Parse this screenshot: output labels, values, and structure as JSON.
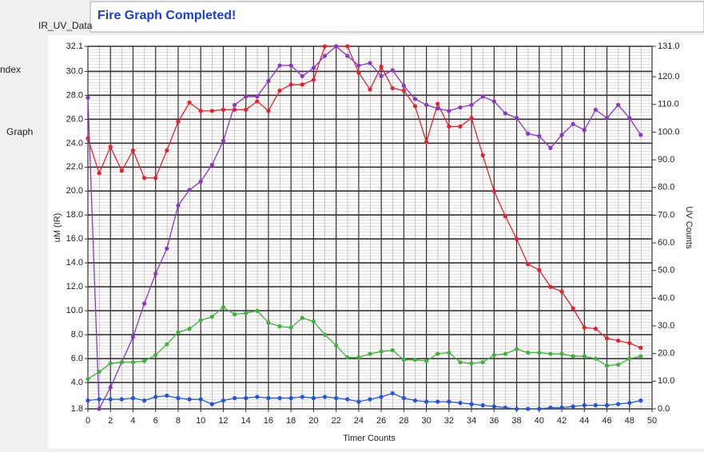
{
  "ui": {
    "left_label_1": "ndex",
    "left_label_2": "Graph",
    "tab": "IR_UV_Data",
    "status": "Fire Graph Completed!"
  },
  "chart_data": {
    "type": "line",
    "xlabel": "Timer Counts",
    "ylabel": "uM (IR)",
    "y2label": "UV Counts",
    "x": [
      0,
      1,
      2,
      3,
      4,
      5,
      6,
      7,
      8,
      9,
      10,
      11,
      12,
      13,
      14,
      15,
      16,
      17,
      18,
      19,
      20,
      21,
      22,
      23,
      24,
      25,
      26,
      27,
      28,
      29,
      30,
      31,
      32,
      33,
      34,
      35,
      36,
      37,
      38,
      39,
      40,
      41,
      42,
      43,
      44,
      45,
      46,
      47,
      48,
      49
    ],
    "xlim": [
      0,
      50
    ],
    "xticks": [
      0,
      2,
      4,
      6,
      8,
      10,
      12,
      14,
      16,
      18,
      20,
      22,
      24,
      26,
      28,
      30,
      32,
      34,
      36,
      38,
      40,
      42,
      44,
      46,
      48,
      50
    ],
    "ylim": [
      1.8,
      32.1
    ],
    "yticks": [
      1.8,
      {
        "value": 4,
        "label": "4.0"
      },
      {
        "value": 6,
        "label": "6.0"
      },
      {
        "value": 8,
        "label": "8.0"
      },
      {
        "value": 10,
        "label": "10.0"
      },
      {
        "value": 12,
        "label": "12.0"
      },
      {
        "value": 14,
        "label": "14.0"
      },
      {
        "value": 16,
        "label": "16.0"
      },
      {
        "value": 18,
        "label": "18.0"
      },
      {
        "value": 20,
        "label": "20.0"
      },
      {
        "value": 22,
        "label": "22.0"
      },
      {
        "value": 24,
        "label": "24.0"
      },
      {
        "value": 26,
        "label": "26.0"
      },
      {
        "value": 28,
        "label": "28.0"
      },
      {
        "value": 30,
        "label": "30.0"
      },
      32.1
    ],
    "y2lim": [
      0,
      131
    ],
    "y2ticks": [
      {
        "value": 0,
        "label": "0.0"
      },
      {
        "value": 10,
        "label": "10.0"
      },
      {
        "value": 20,
        "label": "20.0"
      },
      {
        "value": 30,
        "label": "30.0"
      },
      {
        "value": 40,
        "label": "40.0"
      },
      {
        "value": 50,
        "label": "50.0"
      },
      {
        "value": 60,
        "label": "60.0"
      },
      {
        "value": 70,
        "label": "70.0"
      },
      {
        "value": 80,
        "label": "80.0"
      },
      {
        "value": 90,
        "label": "90.0"
      },
      {
        "value": 100,
        "label": "100.0"
      },
      {
        "value": 110,
        "label": "110.0"
      },
      {
        "value": 120,
        "label": "120.0"
      },
      {
        "value": 131,
        "label": "131.0"
      }
    ],
    "grid": true,
    "series": [
      {
        "color": "#e8202a",
        "values": [
          24.4,
          21.5,
          23.7,
          21.7,
          23.4,
          21.1,
          21.1,
          23.4,
          25.8,
          27.4,
          26.7,
          26.7,
          26.8,
          26.8,
          26.8,
          27.5,
          26.7,
          28.4,
          28.9,
          28.9,
          29.3,
          32.1,
          32.1,
          32.1,
          29.9,
          28.5,
          30.4,
          28.6,
          28.4,
          27.1,
          24.1,
          27.3,
          25.4,
          25.4,
          26.1,
          23.0,
          20.0,
          17.9,
          16.0,
          13.9,
          13.4,
          12.0,
          11.6,
          10.2,
          8.6,
          8.5,
          7.7,
          7.5,
          7.3,
          6.9
        ]
      },
      {
        "color": "#8a35c8",
        "values": [
          27.8,
          1.8,
          3.6,
          5.7,
          7.8,
          10.6,
          13.1,
          15.2,
          18.8,
          20.1,
          20.8,
          22.2,
          24.2,
          27.2,
          27.9,
          27.9,
          29.2,
          30.5,
          30.5,
          29.6,
          30.3,
          31.3,
          32.1,
          31.3,
          30.5,
          30.7,
          29.6,
          30.1,
          28.8,
          27.7,
          27.2,
          26.9,
          26.7,
          27.0,
          27.2,
          27.9,
          27.5,
          26.5,
          26.1,
          24.8,
          24.6,
          23.6,
          24.7,
          25.6,
          25.1,
          26.8,
          26.1,
          27.2,
          26.1,
          24.7
        ]
      },
      {
        "color": "#3cb33c",
        "values": [
          4.3,
          4.9,
          5.6,
          5.7,
          5.7,
          5.8,
          6.3,
          7.2,
          8.2,
          8.5,
          9.2,
          9.5,
          10.3,
          9.7,
          9.8,
          10.0,
          9.0,
          8.7,
          8.6,
          9.4,
          9.1,
          8.0,
          7.1,
          6.1,
          6.1,
          6.4,
          6.6,
          6.7,
          5.9,
          5.9,
          5.8,
          6.4,
          6.5,
          5.7,
          5.6,
          5.7,
          6.3,
          6.4,
          6.8,
          6.5,
          6.5,
          6.4,
          6.4,
          6.2,
          6.2,
          6.0,
          5.4,
          5.5,
          6.0,
          6.2
        ]
      },
      {
        "color": "#2255dd",
        "values": [
          2.5,
          2.6,
          2.6,
          2.6,
          2.7,
          2.5,
          2.8,
          2.9,
          2.7,
          2.6,
          2.6,
          2.2,
          2.5,
          2.7,
          2.7,
          2.8,
          2.7,
          2.7,
          2.7,
          2.8,
          2.7,
          2.8,
          2.7,
          2.6,
          2.4,
          2.6,
          2.8,
          3.1,
          2.7,
          2.5,
          2.4,
          2.4,
          2.4,
          2.3,
          2.2,
          2.1,
          2.0,
          1.9,
          1.8,
          1.8,
          1.8,
          1.9,
          1.9,
          2.0,
          2.1,
          2.1,
          2.1,
          2.2,
          2.3,
          2.5
        ]
      }
    ]
  }
}
